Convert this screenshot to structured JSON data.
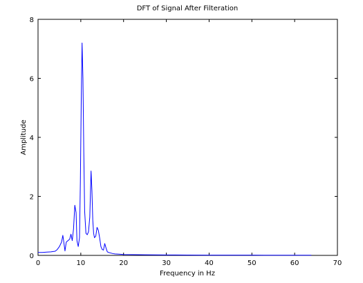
{
  "chart_data": {
    "type": "line",
    "title": "DFT of Signal After Filteration",
    "xlabel": "Frequency in Hz",
    "ylabel": "Amplitude",
    "xlim": [
      0,
      70
    ],
    "ylim": [
      0,
      8
    ],
    "xticks": [
      0,
      10,
      20,
      30,
      40,
      50,
      60,
      70
    ],
    "yticks": [
      0,
      2,
      4,
      6,
      8
    ],
    "grid": false,
    "line_color": "#0000ff",
    "series": [
      {
        "x": [
          0,
          1,
          2,
          3,
          4,
          4.5,
          5,
          5.5,
          5.8,
          6.0,
          6.3,
          6.6,
          7.0,
          7.4,
          7.7,
          8.0,
          8.3,
          8.6,
          8.9,
          9.1,
          9.4,
          9.7,
          9.9,
          10.1,
          10.3,
          10.5,
          10.7,
          10.9,
          11.2,
          11.5,
          11.8,
          12.1,
          12.4,
          12.6,
          12.8,
          13.0,
          13.2,
          13.5,
          13.8,
          14.1,
          14.4,
          14.7,
          15.0,
          15.3,
          15.6,
          15.9,
          16.2,
          16.5,
          17.0,
          17.5,
          18.0,
          19.0,
          20.0,
          22.0,
          25.0,
          30.0,
          35.0,
          40.0,
          45.0,
          50.0,
          55.0,
          60.0,
          63.9
        ],
        "y": [
          0.1,
          0.1,
          0.11,
          0.12,
          0.14,
          0.2,
          0.3,
          0.45,
          0.68,
          0.48,
          0.15,
          0.45,
          0.5,
          0.55,
          0.72,
          0.5,
          0.9,
          1.7,
          1.45,
          0.5,
          0.3,
          0.6,
          2.5,
          5.2,
          7.2,
          6.0,
          3.5,
          1.5,
          0.75,
          0.7,
          0.8,
          1.3,
          2.86,
          2.2,
          1.2,
          0.75,
          0.6,
          0.65,
          0.95,
          0.85,
          0.6,
          0.3,
          0.2,
          0.18,
          0.4,
          0.25,
          0.12,
          0.1,
          0.08,
          0.06,
          0.05,
          0.04,
          0.03,
          0.025,
          0.02,
          0.015,
          0.012,
          0.01,
          0.01,
          0.008,
          0.006,
          0.005,
          0.005
        ]
      }
    ]
  }
}
